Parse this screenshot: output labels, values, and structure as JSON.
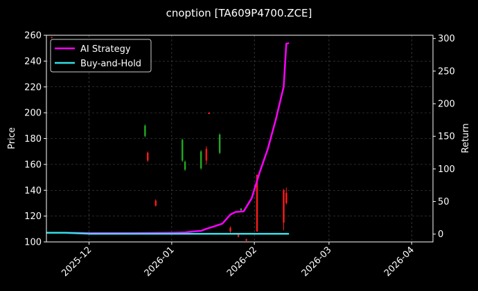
{
  "chart_data": {
    "type": "line",
    "title": "cnoption [TA609P4700.ZCE]",
    "ylabel_left": "Price",
    "ylabel_right": "Return",
    "ylim_left": [
      100,
      260
    ],
    "ylim_right": [
      -12,
      305
    ],
    "xlim": [
      "2025-11-15",
      "2026-04-09"
    ],
    "yticks_left": [
      100,
      120,
      140,
      160,
      180,
      200,
      220,
      240,
      260
    ],
    "yticks_right": [
      0,
      50,
      100,
      150,
      200,
      250,
      300
    ],
    "xticks": [
      {
        "date": "2025-12-01",
        "label": "2025-12"
      },
      {
        "date": "2026-01-01",
        "label": "2026-01"
      },
      {
        "date": "2026-02-01",
        "label": "2026-02"
      },
      {
        "date": "2026-03-01",
        "label": "2026-03"
      },
      {
        "date": "2026-04-01",
        "label": "2026-04"
      }
    ],
    "grid": true,
    "legend_position": "top-left",
    "series": [
      {
        "name": "AI Strategy",
        "axis": "right",
        "color": "#ff00ff",
        "x": [
          "2025-11-15",
          "2025-11-22",
          "2025-12-01",
          "2025-12-15",
          "2025-12-25",
          "2026-01-01",
          "2026-01-06",
          "2026-01-09",
          "2026-01-12",
          "2026-01-14",
          "2026-01-17",
          "2026-01-20",
          "2026-01-23",
          "2026-01-25",
          "2026-01-28",
          "2026-01-31",
          "2026-02-03",
          "2026-02-06",
          "2026-02-09",
          "2026-02-12",
          "2026-02-13",
          "2026-02-14"
        ],
        "values": [
          2,
          2,
          1.5,
          1.5,
          1.8,
          2,
          2.5,
          4,
          5,
          8,
          12,
          16,
          30,
          34,
          35,
          55,
          95,
          130,
          175,
          226,
          292,
          293
        ]
      },
      {
        "name": "Buy-and-Hold",
        "axis": "right",
        "color": "#33e0e8",
        "x": [
          "2025-11-15",
          "2025-11-22",
          "2025-12-01",
          "2026-01-01",
          "2026-02-01",
          "2026-02-14"
        ],
        "values": [
          2,
          2,
          0.5,
          0.5,
          0.5,
          0.5
        ]
      }
    ],
    "candles": [
      {
        "date": "2025-11-17",
        "open": 258,
        "close": 258.4,
        "high": 259,
        "low": 257.5
      },
      {
        "date": "2025-12-22",
        "open": 190,
        "close": 182,
        "high": 191,
        "low": 181
      },
      {
        "date": "2025-12-23",
        "open": 163,
        "close": 169,
        "high": 170,
        "low": 162
      },
      {
        "date": "2025-12-26",
        "open": 128,
        "close": 132,
        "high": 133,
        "low": 127.5
      },
      {
        "date": "2026-01-05",
        "open": 179,
        "close": 163,
        "high": 180,
        "low": 162
      },
      {
        "date": "2026-01-06",
        "open": 162,
        "close": 156,
        "high": 163,
        "low": 155
      },
      {
        "date": "2026-01-12",
        "open": 170,
        "close": 157,
        "high": 171,
        "low": 156
      },
      {
        "date": "2026-01-14",
        "open": 163,
        "close": 172,
        "high": 174,
        "low": 160
      },
      {
        "date": "2026-01-15",
        "open": 199,
        "close": 200,
        "high": 200.5,
        "low": 199
      },
      {
        "date": "2026-01-19",
        "open": 183,
        "close": 169,
        "high": 184,
        "low": 168
      },
      {
        "date": "2026-01-23",
        "open": 108,
        "close": 111,
        "high": 112,
        "low": 107
      },
      {
        "date": "2026-01-26",
        "open": 104,
        "close": 106,
        "high": 106.5,
        "low": 103.5
      },
      {
        "date": "2026-01-27",
        "open": 126,
        "close": 124.5,
        "high": 126,
        "low": 124
      },
      {
        "date": "2026-01-29",
        "open": 101,
        "close": 102,
        "high": 102.5,
        "low": 100.5
      },
      {
        "date": "2026-02-02",
        "open": 108,
        "close": 152,
        "high": 152,
        "low": 108
      },
      {
        "date": "2026-02-12",
        "open": 115,
        "close": 140,
        "high": 141,
        "low": 109
      },
      {
        "date": "2026-02-13",
        "open": 130,
        "close": 138,
        "high": 142,
        "low": 129
      }
    ]
  }
}
